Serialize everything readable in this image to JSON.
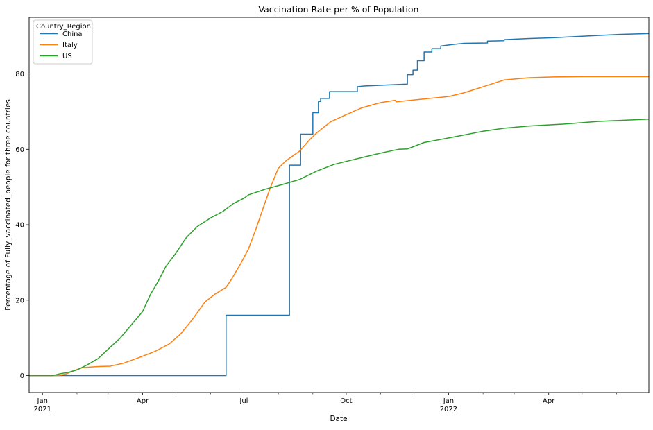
{
  "chart_data": {
    "type": "line",
    "title": "Vaccination Rate per % of Population",
    "xlabel": "Date",
    "ylabel": "Percentage of Fully_vaccinated_people for three countries",
    "x_range": [
      "2020-12-20",
      "2022-06-30"
    ],
    "ylim": [
      -4.5,
      95.0
    ],
    "grid": false,
    "legend": {
      "title": "Country_Region",
      "position": "top-left"
    },
    "x_ticks_major": [
      {
        "date": "2021-01-01",
        "label": "Jan",
        "sublabel": "2021"
      },
      {
        "date": "2021-04-01",
        "label": "Apr",
        "sublabel": ""
      },
      {
        "date": "2021-07-01",
        "label": "Jul",
        "sublabel": ""
      },
      {
        "date": "2021-10-01",
        "label": "Oct",
        "sublabel": ""
      },
      {
        "date": "2022-01-01",
        "label": "Jan",
        "sublabel": "2022"
      },
      {
        "date": "2022-04-01",
        "label": "Apr",
        "sublabel": ""
      }
    ],
    "x_ticks_minor": [
      "2021-02-01",
      "2021-03-01",
      "2021-05-01",
      "2021-06-01",
      "2021-08-01",
      "2021-09-01",
      "2021-11-01",
      "2021-12-01",
      "2022-02-01",
      "2022-03-01",
      "2022-05-01",
      "2022-06-01"
    ],
    "y_ticks": [
      0,
      20,
      40,
      60,
      80
    ],
    "series": [
      {
        "name": "China",
        "color": "#1f77b4",
        "points": [
          [
            "2020-12-20",
            0
          ],
          [
            "2021-06-15",
            0
          ],
          [
            "2021-06-15",
            16
          ],
          [
            "2021-08-11",
            16
          ],
          [
            "2021-08-11",
            55.8
          ],
          [
            "2021-08-21",
            55.8
          ],
          [
            "2021-08-21",
            64
          ],
          [
            "2021-09-01",
            64
          ],
          [
            "2021-09-01",
            69.7
          ],
          [
            "2021-09-06",
            69.7
          ],
          [
            "2021-09-06",
            72.7
          ],
          [
            "2021-09-08",
            72.7
          ],
          [
            "2021-09-08",
            73.5
          ],
          [
            "2021-09-16",
            73.5
          ],
          [
            "2021-09-16",
            75.3
          ],
          [
            "2021-10-11",
            75.3
          ],
          [
            "2021-10-11",
            76.6
          ],
          [
            "2021-10-17",
            76.8
          ],
          [
            "2021-11-25",
            77.3
          ],
          [
            "2021-11-25",
            79.8
          ],
          [
            "2021-11-30",
            79.8
          ],
          [
            "2021-11-30",
            81.0
          ],
          [
            "2021-12-04",
            81.0
          ],
          [
            "2021-12-04",
            83.5
          ],
          [
            "2021-12-10",
            83.5
          ],
          [
            "2021-12-10",
            85.8
          ],
          [
            "2021-12-17",
            85.8
          ],
          [
            "2021-12-17",
            86.7
          ],
          [
            "2021-12-25",
            86.7
          ],
          [
            "2021-12-25",
            87.4
          ],
          [
            "2022-01-05",
            87.8
          ],
          [
            "2022-01-15",
            88.1
          ],
          [
            "2022-02-05",
            88.2
          ],
          [
            "2022-02-05",
            88.7
          ],
          [
            "2022-02-20",
            88.8
          ],
          [
            "2022-02-20",
            89.1
          ],
          [
            "2022-03-15",
            89.4
          ],
          [
            "2022-04-05",
            89.6
          ],
          [
            "2022-04-25",
            89.9
          ],
          [
            "2022-05-15",
            90.2
          ],
          [
            "2022-06-05",
            90.5
          ],
          [
            "2022-06-30",
            90.7
          ]
        ]
      },
      {
        "name": "Italy",
        "color": "#ff7f0e",
        "points": [
          [
            "2020-12-20",
            0
          ],
          [
            "2021-01-15",
            0
          ],
          [
            "2021-01-22",
            0.4
          ],
          [
            "2021-01-29",
            1.3
          ],
          [
            "2021-02-06",
            2.1
          ],
          [
            "2021-02-20",
            2.4
          ],
          [
            "2021-03-03",
            2.5
          ],
          [
            "2021-03-15",
            3.3
          ],
          [
            "2021-03-29",
            4.8
          ],
          [
            "2021-04-12",
            6.4
          ],
          [
            "2021-04-25",
            8.4
          ],
          [
            "2021-05-05",
            11.0
          ],
          [
            "2021-05-15",
            14.6
          ],
          [
            "2021-05-27",
            19.5
          ],
          [
            "2021-06-05",
            21.6
          ],
          [
            "2021-06-15",
            23.4
          ],
          [
            "2021-06-20",
            25.6
          ],
          [
            "2021-06-28",
            29.6
          ],
          [
            "2021-07-05",
            33.5
          ],
          [
            "2021-07-12",
            39.0
          ],
          [
            "2021-07-19",
            45.0
          ],
          [
            "2021-07-25",
            50.0
          ],
          [
            "2021-08-01",
            55.0
          ],
          [
            "2021-08-08",
            57.0
          ],
          [
            "2021-08-20",
            59.5
          ],
          [
            "2021-08-29",
            62.5
          ],
          [
            "2021-09-05",
            64.5
          ],
          [
            "2021-09-17",
            67.3
          ],
          [
            "2021-10-01",
            69.2
          ],
          [
            "2021-10-15",
            71.0
          ],
          [
            "2021-11-01",
            72.4
          ],
          [
            "2021-11-14",
            73.0
          ],
          [
            "2021-11-15",
            72.6
          ],
          [
            "2021-12-15",
            73.5
          ],
          [
            "2022-01-01",
            74.0
          ],
          [
            "2022-01-15",
            75.0
          ],
          [
            "2022-02-01",
            76.6
          ],
          [
            "2022-02-20",
            78.4
          ],
          [
            "2022-03-15",
            79.0
          ],
          [
            "2022-04-05",
            79.2
          ],
          [
            "2022-05-01",
            79.3
          ],
          [
            "2022-06-30",
            79.3
          ]
        ]
      },
      {
        "name": "US",
        "color": "#2ca02c",
        "points": [
          [
            "2020-12-20",
            0
          ],
          [
            "2021-01-10",
            0
          ],
          [
            "2021-01-17",
            0.5
          ],
          [
            "2021-01-25",
            0.9
          ],
          [
            "2021-02-01",
            1.5
          ],
          [
            "2021-02-10",
            2.8
          ],
          [
            "2021-02-20",
            4.5
          ],
          [
            "2021-03-01",
            7.0
          ],
          [
            "2021-03-12",
            10.0
          ],
          [
            "2021-03-22",
            13.5
          ],
          [
            "2021-04-01",
            17.0
          ],
          [
            "2021-04-08",
            21.5
          ],
          [
            "2021-04-15",
            25.0
          ],
          [
            "2021-04-22",
            29.0
          ],
          [
            "2021-05-01",
            32.5
          ],
          [
            "2021-05-10",
            36.5
          ],
          [
            "2021-05-20",
            39.5
          ],
          [
            "2021-06-01",
            41.8
          ],
          [
            "2021-06-12",
            43.5
          ],
          [
            "2021-06-22",
            45.7
          ],
          [
            "2021-07-01",
            47.0
          ],
          [
            "2021-07-05",
            47.9
          ],
          [
            "2021-07-20",
            49.4
          ],
          [
            "2021-08-05",
            50.7
          ],
          [
            "2021-08-20",
            52.0
          ],
          [
            "2021-09-05",
            54.3
          ],
          [
            "2021-09-20",
            56.0
          ],
          [
            "2021-10-01",
            56.8
          ],
          [
            "2021-10-15",
            57.8
          ],
          [
            "2021-11-01",
            59.0
          ],
          [
            "2021-11-17",
            60.0
          ],
          [
            "2021-11-25",
            60.1
          ],
          [
            "2021-12-10",
            61.8
          ],
          [
            "2021-12-28",
            62.8
          ],
          [
            "2022-01-15",
            63.8
          ],
          [
            "2022-02-01",
            64.8
          ],
          [
            "2022-02-20",
            65.6
          ],
          [
            "2022-03-15",
            66.2
          ],
          [
            "2022-04-15",
            66.7
          ],
          [
            "2022-05-15",
            67.4
          ],
          [
            "2022-06-30",
            68.0
          ]
        ]
      }
    ]
  }
}
